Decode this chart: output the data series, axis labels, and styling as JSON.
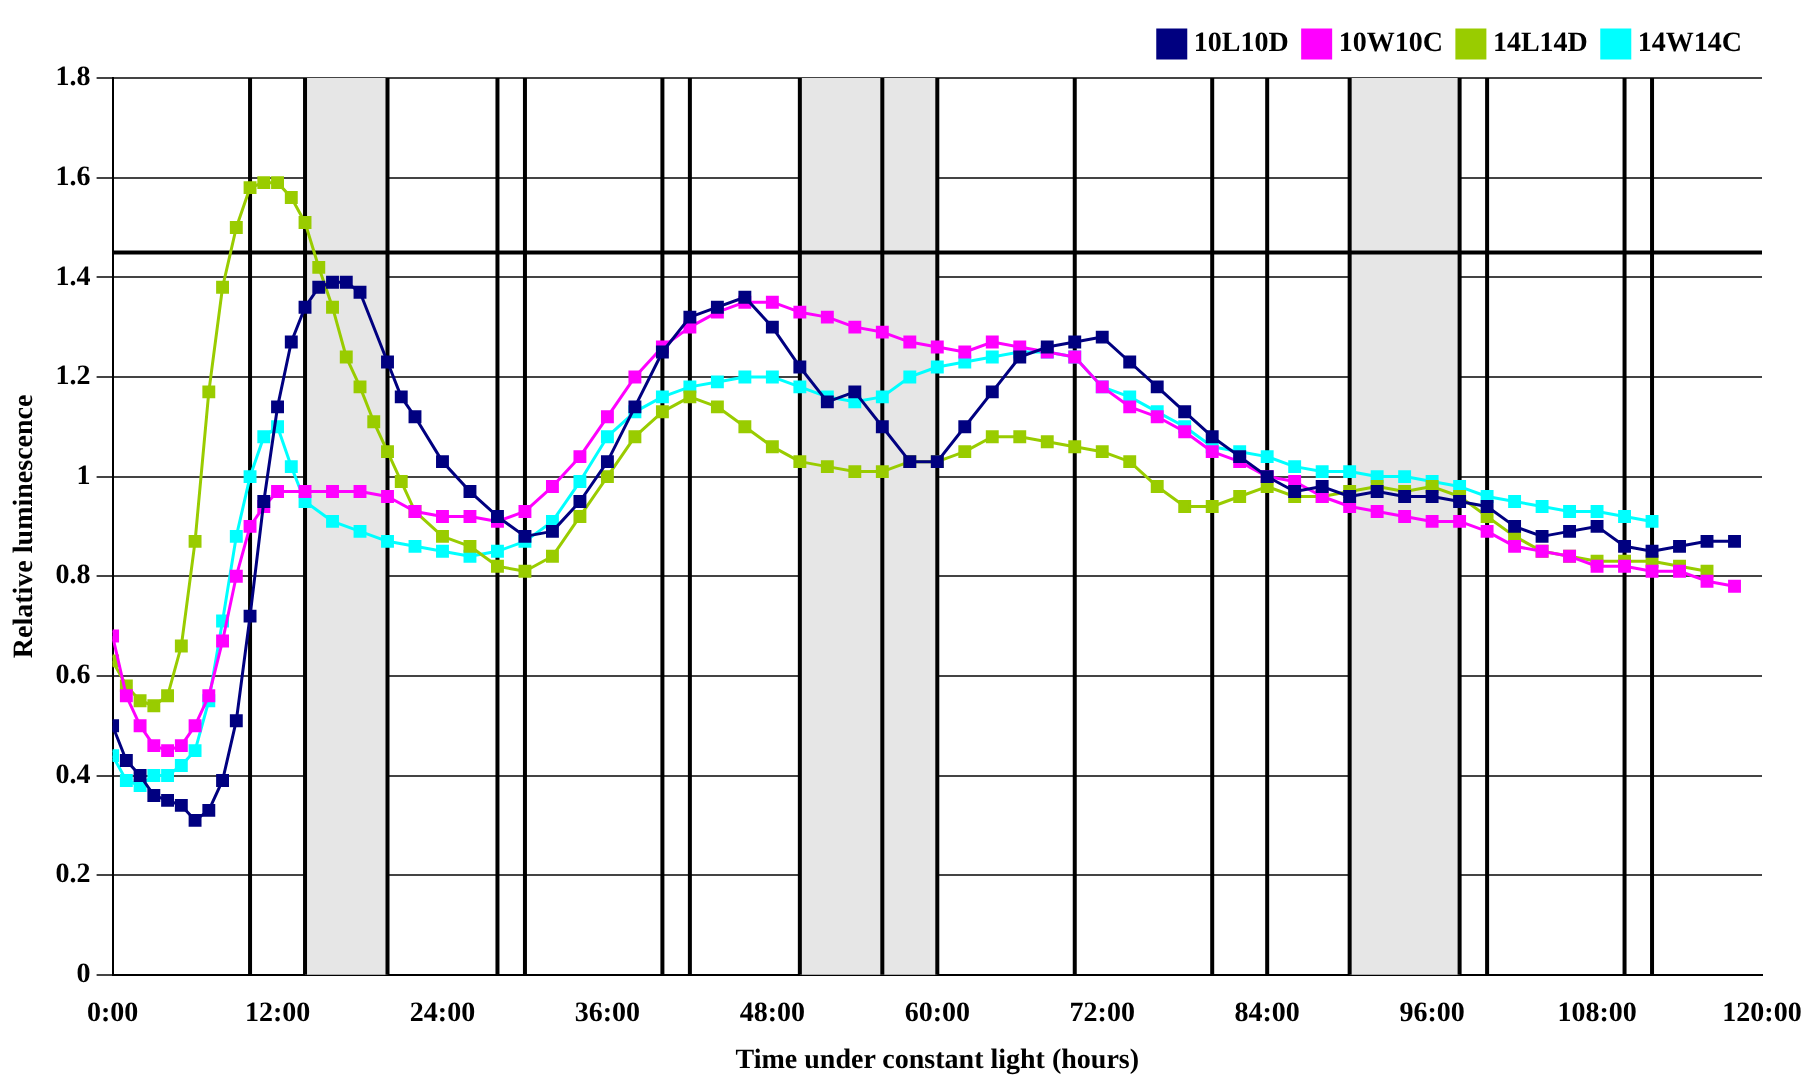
{
  "chart_data": {
    "type": "line",
    "xlabel": "Time under constant light (hours)",
    "ylabel": "Relative luminescence",
    "xlim": [
      0,
      120
    ],
    "xticks": [
      {
        "value": 0,
        "label": "0:00"
      },
      {
        "value": 12,
        "label": "12:00"
      },
      {
        "value": 24,
        "label": "24:00"
      },
      {
        "value": 36,
        "label": "36:00"
      },
      {
        "value": 48,
        "label": "48:00"
      },
      {
        "value": 60,
        "label": "60:00"
      },
      {
        "value": 72,
        "label": "72:00"
      },
      {
        "value": 84,
        "label": "84:00"
      },
      {
        "value": 96,
        "label": "96:00"
      },
      {
        "value": 108,
        "label": "108:00"
      },
      {
        "value": 120,
        "label": "120:00"
      }
    ],
    "ylim": [
      0,
      1.8
    ],
    "yticks": [
      0,
      0.2,
      0.4,
      0.6,
      0.8,
      1,
      1.2,
      1.4,
      1.6,
      1.8
    ],
    "grid": "y",
    "legend": "top right",
    "marker": "square",
    "line_style": "solid",
    "series": [
      {
        "name": "10L10D",
        "color": "#000080",
        "x": [
          0,
          1,
          2,
          3,
          4,
          5,
          6,
          7,
          8,
          9,
          10,
          11,
          12,
          13,
          14,
          15,
          16,
          17,
          18,
          20,
          21,
          22,
          24,
          26,
          28,
          30,
          32,
          34,
          36,
          38,
          40,
          42,
          44,
          46,
          48,
          50,
          52,
          54,
          56,
          58,
          60,
          62,
          64,
          66,
          68,
          70,
          72,
          74,
          76,
          78,
          80,
          82,
          84,
          86,
          88,
          90,
          92,
          94,
          96,
          98,
          100,
          102,
          104,
          106,
          108,
          110,
          112,
          114,
          116,
          118
        ],
        "values": [
          0.5,
          0.43,
          0.4,
          0.36,
          0.35,
          0.34,
          0.31,
          0.33,
          0.39,
          0.51,
          0.72,
          0.95,
          1.14,
          1.27,
          1.34,
          1.38,
          1.39,
          1.39,
          1.37,
          1.23,
          1.16,
          1.12,
          1.03,
          0.97,
          0.92,
          0.88,
          0.89,
          0.95,
          1.03,
          1.14,
          1.25,
          1.32,
          1.34,
          1.36,
          1.3,
          1.22,
          1.15,
          1.17,
          1.1,
          1.03,
          1.03,
          1.1,
          1.17,
          1.24,
          1.26,
          1.27,
          1.28,
          1.23,
          1.18,
          1.13,
          1.08,
          1.04,
          1.0,
          0.97,
          0.98,
          0.96,
          0.97,
          0.96,
          0.96,
          0.95,
          0.94,
          0.9,
          0.88,
          0.89,
          0.9,
          0.86,
          0.85,
          0.86,
          0.87,
          0.87
        ]
      },
      {
        "name": "10W10C",
        "color": "#ff00ff",
        "x": [
          0,
          1,
          2,
          3,
          4,
          5,
          6,
          7,
          8,
          9,
          10,
          11,
          12,
          14,
          16,
          18,
          20,
          22,
          24,
          26,
          28,
          30,
          32,
          34,
          36,
          38,
          40,
          42,
          44,
          46,
          48,
          50,
          52,
          54,
          56,
          58,
          60,
          62,
          64,
          66,
          68,
          70,
          72,
          74,
          76,
          78,
          80,
          82,
          84,
          86,
          88,
          90,
          92,
          94,
          96,
          98,
          100,
          102,
          104,
          106,
          108,
          110,
          112,
          114,
          116,
          118
        ],
        "values": [
          0.68,
          0.56,
          0.5,
          0.46,
          0.45,
          0.46,
          0.5,
          0.56,
          0.67,
          0.8,
          0.9,
          0.94,
          0.97,
          0.97,
          0.97,
          0.97,
          0.96,
          0.93,
          0.92,
          0.92,
          0.91,
          0.93,
          0.98,
          1.04,
          1.12,
          1.2,
          1.26,
          1.3,
          1.33,
          1.35,
          1.35,
          1.33,
          1.32,
          1.3,
          1.29,
          1.27,
          1.26,
          1.25,
          1.27,
          1.26,
          1.25,
          1.24,
          1.18,
          1.14,
          1.12,
          1.09,
          1.05,
          1.03,
          1.0,
          0.99,
          0.96,
          0.94,
          0.93,
          0.92,
          0.91,
          0.91,
          0.89,
          0.86,
          0.85,
          0.84,
          0.82,
          0.82,
          0.81,
          0.81,
          0.79,
          0.78
        ]
      },
      {
        "name": "14L14D",
        "color": "#99cc00",
        "x": [
          0,
          1,
          2,
          3,
          4,
          5,
          6,
          7,
          8,
          9,
          10,
          11,
          12,
          13,
          14,
          15,
          16,
          17,
          18,
          19,
          20,
          21,
          22,
          24,
          26,
          28,
          30,
          32,
          34,
          36,
          38,
          40,
          42,
          44,
          46,
          48,
          50,
          52,
          54,
          56,
          58,
          60,
          62,
          64,
          66,
          68,
          70,
          72,
          74,
          76,
          78,
          80,
          82,
          84,
          86,
          88,
          90,
          92,
          94,
          96,
          98,
          100,
          102,
          104,
          106,
          108,
          110,
          112,
          114,
          116
        ],
        "values": [
          0.63,
          0.58,
          0.55,
          0.54,
          0.56,
          0.66,
          0.87,
          1.17,
          1.38,
          1.5,
          1.58,
          1.59,
          1.59,
          1.56,
          1.51,
          1.42,
          1.34,
          1.24,
          1.18,
          1.11,
          1.05,
          0.99,
          0.93,
          0.88,
          0.86,
          0.82,
          0.81,
          0.84,
          0.92,
          1.0,
          1.08,
          1.13,
          1.16,
          1.14,
          1.1,
          1.06,
          1.03,
          1.02,
          1.01,
          1.01,
          1.03,
          1.03,
          1.05,
          1.08,
          1.08,
          1.07,
          1.06,
          1.05,
          1.03,
          0.98,
          0.94,
          0.94,
          0.96,
          0.98,
          0.96,
          0.96,
          0.97,
          0.98,
          0.97,
          0.98,
          0.96,
          0.92,
          0.88,
          0.85,
          0.84,
          0.83,
          0.83,
          0.83,
          0.82,
          0.81
        ]
      },
      {
        "name": "14W14C",
        "color": "#00ffff",
        "x": [
          0,
          1,
          2,
          3,
          4,
          5,
          6,
          7,
          8,
          9,
          10,
          11,
          12,
          13,
          14,
          16,
          18,
          20,
          22,
          24,
          26,
          28,
          30,
          32,
          34,
          36,
          38,
          40,
          42,
          44,
          46,
          48,
          50,
          52,
          54,
          56,
          58,
          60,
          62,
          64,
          66,
          68,
          70,
          72,
          74,
          76,
          78,
          80,
          82,
          84,
          86,
          88,
          90,
          92,
          94,
          96,
          98,
          100,
          102,
          104,
          106,
          108,
          110,
          112
        ],
        "values": [
          0.44,
          0.39,
          0.38,
          0.4,
          0.4,
          0.42,
          0.45,
          0.55,
          0.71,
          0.88,
          1.0,
          1.08,
          1.1,
          1.02,
          0.95,
          0.91,
          0.89,
          0.87,
          0.86,
          0.85,
          0.84,
          0.85,
          0.87,
          0.91,
          0.99,
          1.08,
          1.13,
          1.16,
          1.18,
          1.19,
          1.2,
          1.2,
          1.18,
          1.16,
          1.15,
          1.16,
          1.2,
          1.22,
          1.23,
          1.24,
          1.25,
          1.25,
          1.24,
          1.18,
          1.16,
          1.13,
          1.1,
          1.06,
          1.05,
          1.04,
          1.02,
          1.01,
          1.01,
          1.0,
          1.0,
          0.99,
          0.98,
          0.96,
          0.95,
          0.94,
          0.93,
          0.93,
          0.92,
          0.91
        ]
      }
    ],
    "bands": [
      {
        "axis": "x",
        "from": 14,
        "to": 20,
        "color": "#e6e6e6"
      },
      {
        "axis": "x",
        "from": 50,
        "to": 60,
        "color": "#e6e6e6"
      },
      {
        "axis": "x",
        "from": 90,
        "to": 98,
        "color": "#e6e6e6"
      }
    ],
    "ref_lines": [
      {
        "axis": "y",
        "value": 1.45,
        "color": "#000000"
      },
      {
        "axis": "x",
        "value": 10,
        "color": "#000000"
      },
      {
        "axis": "x",
        "value": 14,
        "color": "#000000"
      },
      {
        "axis": "x",
        "value": 20,
        "color": "#000000"
      },
      {
        "axis": "x",
        "value": 28,
        "color": "#000000"
      },
      {
        "axis": "x",
        "value": 30,
        "color": "#000000"
      },
      {
        "axis": "x",
        "value": 40,
        "color": "#000000"
      },
      {
        "axis": "x",
        "value": 42,
        "color": "#000000"
      },
      {
        "axis": "x",
        "value": 50,
        "color": "#000000"
      },
      {
        "axis": "x",
        "value": 56,
        "color": "#000000"
      },
      {
        "axis": "x",
        "value": 60,
        "color": "#000000"
      },
      {
        "axis": "x",
        "value": 70,
        "color": "#000000"
      },
      {
        "axis": "x",
        "value": 80,
        "color": "#000000"
      },
      {
        "axis": "x",
        "value": 84,
        "color": "#000000"
      },
      {
        "axis": "x",
        "value": 90,
        "color": "#000000"
      },
      {
        "axis": "x",
        "value": 98,
        "color": "#000000"
      },
      {
        "axis": "x",
        "value": 100,
        "color": "#000000"
      },
      {
        "axis": "x",
        "value": 110,
        "color": "#000000"
      },
      {
        "axis": "x",
        "value": 112,
        "color": "#000000"
      }
    ]
  }
}
